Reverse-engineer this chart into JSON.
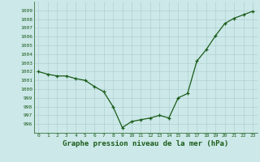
{
  "x": [
    0,
    1,
    2,
    3,
    4,
    5,
    6,
    7,
    8,
    9,
    10,
    11,
    12,
    13,
    14,
    15,
    16,
    17,
    18,
    19,
    20,
    21,
    22,
    23
  ],
  "y": [
    1002.0,
    1001.7,
    1001.5,
    1001.5,
    1001.2,
    1001.0,
    1000.3,
    999.7,
    998.0,
    995.6,
    996.3,
    996.5,
    996.7,
    997.0,
    996.7,
    999.0,
    999.5,
    1003.2,
    1004.5,
    1006.1,
    1007.5,
    1008.1,
    1008.5,
    1008.9
  ],
  "line_color": "#1a5c1a",
  "marker_color": "#1a5c1a",
  "bg_color": "#cce8e8",
  "grid_color": "#aacccc",
  "xlabel": "Graphe pression niveau de la mer (hPa)",
  "ylim_min": 995.0,
  "ylim_max": 1010.0,
  "yticks": [
    996,
    997,
    998,
    999,
    1000,
    1001,
    1002,
    1003,
    1004,
    1005,
    1006,
    1007,
    1008,
    1009
  ],
  "xticks": [
    0,
    1,
    2,
    3,
    4,
    5,
    6,
    7,
    8,
    9,
    10,
    11,
    12,
    13,
    14,
    15,
    16,
    17,
    18,
    19,
    20,
    21,
    22,
    23
  ],
  "tick_fontsize": 4.5,
  "xlabel_fontsize": 6.5,
  "line_width": 0.9,
  "marker_size": 3.0
}
